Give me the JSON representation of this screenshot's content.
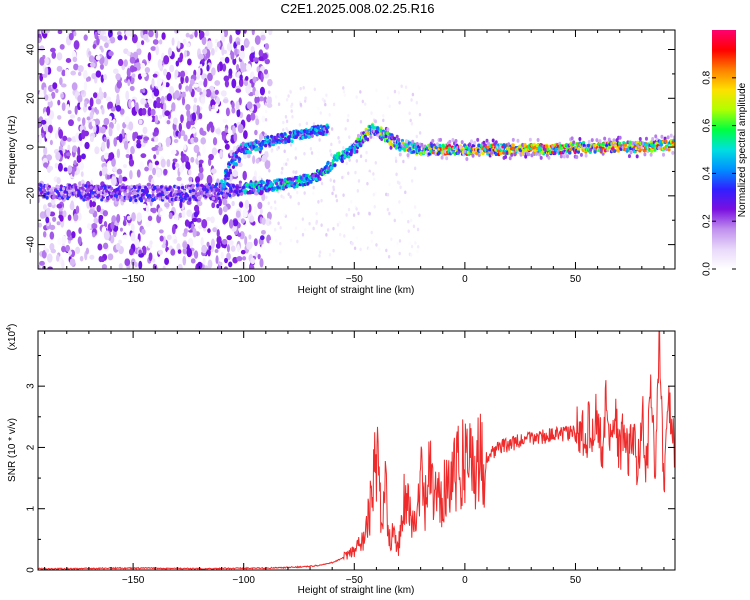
{
  "title": "C2E1.2025.008.02.25.R16",
  "chart_data": [
    {
      "type": "heatmap",
      "xlabel": "Height of straight line (km)",
      "ylabel": "Frequency (Hz)",
      "xlim": [
        -193,
        95
      ],
      "ylim": [
        -50,
        48
      ],
      "xticks": [
        -150,
        -100,
        -50,
        0,
        50
      ],
      "yticks": [
        -40,
        -20,
        0,
        20,
        40
      ],
      "grid": false,
      "colorbar": {
        "label": "Normalized spectral amplitude",
        "range": [
          0,
          1
        ],
        "ticks": [
          0.0,
          0.2,
          0.4,
          0.6,
          0.8
        ],
        "tick_labels": [
          "0.0",
          "0.2",
          "0.4",
          "0.6",
          "0.8"
        ],
        "colormap": [
          "#ffffff",
          "#d8bff5",
          "#9f5fe8",
          "#6a00d8",
          "#2020ff",
          "#00c8ff",
          "#00ff60",
          "#c0ff00",
          "#ffd000",
          "#ff6000",
          "#ff0040"
        ]
      },
      "ridges": [
        {
          "name": "",
          "points": [
            [
              -193,
              -18
            ],
            [
              -160,
              -19
            ],
            [
              -130,
              -19
            ],
            [
              -110,
              -18
            ],
            [
              -100,
              -17
            ],
            [
              -90,
              -16
            ],
            [
              -80,
              -15
            ],
            [
              -70,
              -13
            ],
            [
              -65,
              -11
            ],
            [
              -58,
              -5
            ],
            [
              -52,
              -2
            ],
            [
              -46,
              4
            ],
            [
              -42,
              8
            ],
            [
              -37,
              5
            ],
            [
              -30,
              1
            ],
            [
              -20,
              -1
            ],
            [
              0,
              -1
            ],
            [
              30,
              -1
            ],
            [
              60,
              0
            ],
            [
              80,
              0
            ],
            [
              95,
              1
            ]
          ]
        },
        {
          "name": "",
          "points": [
            [
              -110,
              -17
            ],
            [
              -105,
              -6
            ],
            [
              -100,
              -1
            ],
            [
              -90,
              2
            ],
            [
              -80,
              4
            ],
            [
              -70,
              6
            ],
            [
              -62,
              7
            ]
          ]
        }
      ]
    },
    {
      "type": "line",
      "xlabel": "Height of straight line (km)",
      "ylabel": "SNR (10 * v/v)",
      "y_multiplier": "(x10^4)",
      "xlim": [
        -193,
        95
      ],
      "ylim": [
        0,
        3.9
      ],
      "xticks": [
        -150,
        -100,
        -50,
        0,
        50
      ],
      "yticks": [
        0,
        1,
        2,
        3
      ],
      "grid": false,
      "color": "#ee2a2a",
      "series": [
        {
          "x": [
            -193,
            -180,
            -160,
            -140,
            -120,
            -100,
            -90,
            -80,
            -75,
            -70,
            -65,
            -60,
            -55,
            -50,
            -45,
            -42,
            -40,
            -38,
            -36,
            -34,
            -32,
            -30,
            -28,
            -26,
            -24,
            -22,
            -20,
            -18,
            -16,
            -14,
            -12,
            -10,
            -8,
            -6,
            -4,
            -2,
            0,
            5,
            10,
            15,
            20,
            25,
            30,
            35,
            40,
            45,
            50,
            55,
            60,
            62,
            64,
            66,
            68,
            70,
            72,
            74,
            76,
            78,
            80,
            82,
            84,
            86,
            88,
            90,
            92,
            95
          ],
          "y": [
            0.02,
            0.02,
            0.03,
            0.03,
            0.02,
            0.03,
            0.03,
            0.04,
            0.05,
            0.06,
            0.08,
            0.12,
            0.2,
            0.3,
            0.55,
            1.2,
            1.9,
            0.9,
            1.4,
            0.6,
            0.5,
            0.4,
            1.1,
            1.3,
            0.7,
            0.8,
            1.5,
            1.0,
            1.6,
            1.2,
            1.1,
            1.3,
            1.5,
            1.6,
            1.55,
            1.7,
            1.9,
            1.75,
            1.85,
            2.0,
            2.05,
            2.1,
            2.15,
            2.18,
            2.2,
            2.22,
            2.25,
            2.25,
            2.5,
            1.9,
            2.9,
            1.8,
            2.6,
            1.9,
            2.4,
            1.8,
            2.3,
            1.5,
            2.7,
            1.6,
            2.9,
            1.7,
            3.9,
            1.1,
            2.9,
            1.9
          ]
        }
      ]
    }
  ]
}
